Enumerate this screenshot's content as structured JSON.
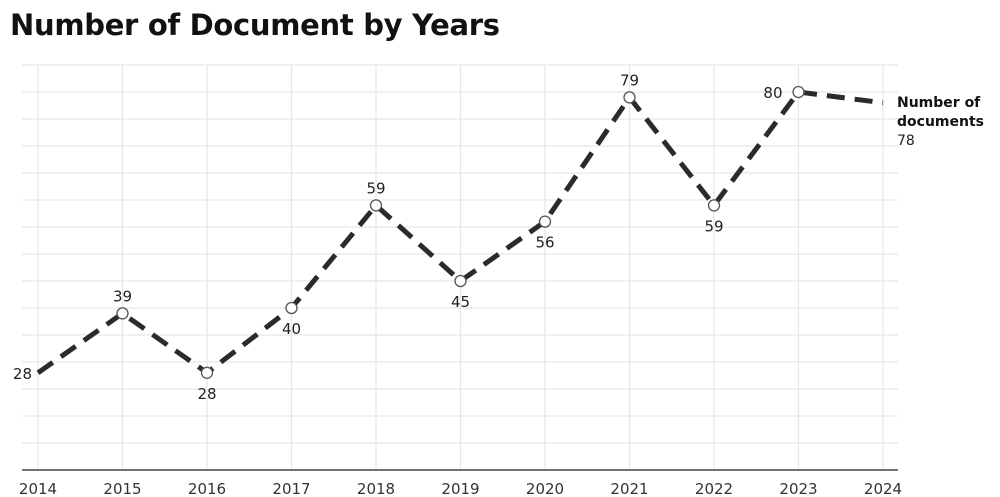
{
  "chart_data": {
    "type": "line",
    "title": "Number of Document by Years",
    "x": [
      "2014",
      "2015",
      "2016",
      "2017",
      "2018",
      "2019",
      "2020",
      "2021",
      "2022",
      "2023",
      "2024"
    ],
    "series": [
      {
        "name": "Number of documents",
        "values": [
          28,
          39,
          28,
          40,
          59,
          45,
          56,
          79,
          59,
          80,
          78
        ],
        "color": "#2b2b2b",
        "line_style": "dashed"
      }
    ],
    "data_labels": [
      "28",
      "39",
      "28",
      "40",
      "59",
      "45",
      "56",
      "79",
      "59",
      "80",
      "78"
    ],
    "markers_on": [
      false,
      true,
      true,
      true,
      true,
      true,
      true,
      true,
      true,
      true,
      false
    ],
    "ylim": [
      10,
      85
    ],
    "grid": true,
    "legend": {
      "placement": "right",
      "label_lines": [
        "Number of",
        "documents"
      ],
      "value": "78"
    },
    "xlabel": "",
    "ylabel": ""
  }
}
